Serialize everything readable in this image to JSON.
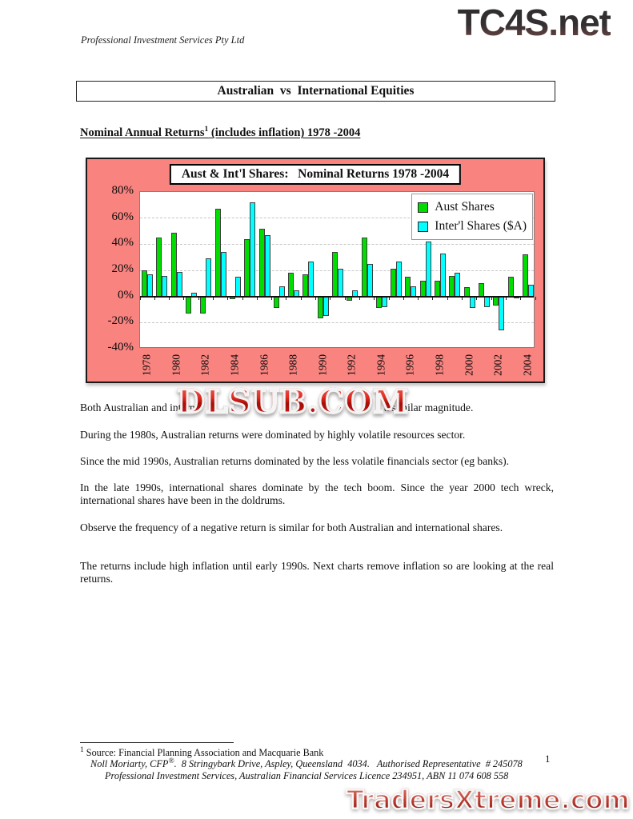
{
  "header": {
    "company": "Professional Investment Services Pty Ltd",
    "site_logo": "TC4S.net"
  },
  "title_banner": "Australian  vs  International Equities",
  "section_heading": {
    "before_sup": "Nominal Annual Returns",
    "sup": "1",
    "after_sup": " (includes inflation) 1978 -2004"
  },
  "watermark": "DLSUB.COM",
  "paragraphs": {
    "p1_left": "Both Australian and interna",
    "p1_right": "a similar magnitude.",
    "p2": "During the 1980s, Australian returns were dominated by highly volatile resources sector.",
    "p3": "Since the mid 1990s, Australian returns dominated by the less volatile financials sector (eg banks).",
    "p4": "In the late 1990s, international shares dominate by the tech boom. Since the year 2000 tech wreck, international shares have been in the doldrums.",
    "p5": "Observe the frequency of a negative return is similar for both Australian and international shares.",
    "p6": "The returns include high inflation until early 1990s. Next charts remove inflation so are looking at the real returns."
  },
  "footnote": {
    "sup": "1",
    "source": " Source: Financial Planning Association and Macquarie Bank",
    "line2_a": "Noll Moriarty, CFP",
    "line2_sup": "®",
    "line2_b": ".  8 Stringybark Drive, Aspley, Queensland  4034.   Authorised Representative  # 245078",
    "line3": "Professional Investment Services, Australian Financial Services Licence 234951, ABN 11 074 608 558"
  },
  "page_number": "1",
  "footer_logo": "TradersXtreme.com",
  "chart_data": {
    "type": "bar",
    "title": "Aust & Int'l Shares:   Nominal Returns 1978 -2004",
    "categories": [
      1978,
      1979,
      1980,
      1981,
      1982,
      1983,
      1984,
      1985,
      1986,
      1987,
      1988,
      1989,
      1990,
      1991,
      1992,
      1993,
      1994,
      1995,
      1996,
      1997,
      1998,
      1999,
      2000,
      2001,
      2002,
      2003,
      2004
    ],
    "series": [
      {
        "name": "Aust Shares",
        "color": "#00DC00",
        "values": [
          20,
          45,
          49,
          -13,
          -13,
          67,
          -2,
          44,
          52,
          -9,
          18,
          17,
          -17,
          34,
          -3,
          45,
          -9,
          21,
          15,
          12,
          12,
          16,
          7,
          10,
          -7,
          15,
          32
        ]
      },
      {
        "name": "Inter'l Shares ($A)",
        "color": "#00FFFF",
        "values": [
          17,
          16,
          19,
          3,
          29,
          34,
          15,
          72,
          47,
          8,
          5,
          27,
          -15,
          21,
          5,
          25,
          -8,
          27,
          8,
          42,
          33,
          18,
          -9,
          -8,
          -26,
          -1,
          9
        ]
      }
    ],
    "ylabel": "",
    "xlabel": "",
    "ylim": [
      -40,
      80
    ],
    "y_tick_values": [
      80,
      60,
      40,
      20,
      0,
      -20,
      -40
    ],
    "y_tick_labels": [
      "80%",
      "60%",
      "40%",
      "20%",
      "0%",
      "-20%",
      "-40%"
    ],
    "y_gridlines": [
      60,
      40,
      20,
      -20
    ],
    "x_tick_labels": [
      "1978",
      "1980",
      "1982",
      "1984",
      "1986",
      "1988",
      "1990",
      "1992",
      "1994",
      "1996",
      "1998",
      "2000",
      "2002",
      "2004"
    ],
    "grid": "dashed-horizontal",
    "legend_position": "top-right",
    "background": "#F9837F",
    "plot_background": "#FFFFFF",
    "bar_border": "#3F3F3F"
  }
}
